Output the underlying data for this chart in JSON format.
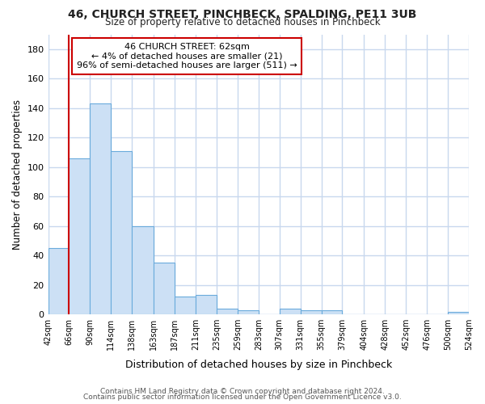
{
  "title1": "46, CHURCH STREET, PINCHBECK, SPALDING, PE11 3UB",
  "title2": "Size of property relative to detached houses in Pinchbeck",
  "xlabel": "Distribution of detached houses by size in Pinchbeck",
  "ylabel": "Number of detached properties",
  "annotation_title": "46 CHURCH STREET: 62sqm",
  "annotation_line2": "← 4% of detached houses are smaller (21)",
  "annotation_line3": "96% of semi-detached houses are larger (511) →",
  "bar_color": "#cce0f5",
  "bar_edge_color": "#6aabdc",
  "vline_color": "#cc0000",
  "vline_x": 66,
  "annotation_box_color": "#ffffff",
  "annotation_box_edge": "#cc0000",
  "bins": [
    42,
    66,
    90,
    114,
    138,
    163,
    187,
    211,
    235,
    259,
    283,
    307,
    331,
    355,
    379,
    404,
    428,
    452,
    476,
    500,
    524
  ],
  "values": [
    45,
    106,
    143,
    111,
    60,
    35,
    12,
    13,
    4,
    3,
    0,
    4,
    3,
    3,
    0,
    0,
    0,
    0,
    0,
    2
  ],
  "ylim": [
    0,
    190
  ],
  "yticks": [
    0,
    20,
    40,
    60,
    80,
    100,
    120,
    140,
    160,
    180
  ],
  "footer1": "Contains HM Land Registry data © Crown copyright and database right 2024.",
  "footer2": "Contains public sector information licensed under the Open Government Licence v3.0.",
  "bg_color": "#ffffff",
  "grid_color": "#c8d8ee"
}
